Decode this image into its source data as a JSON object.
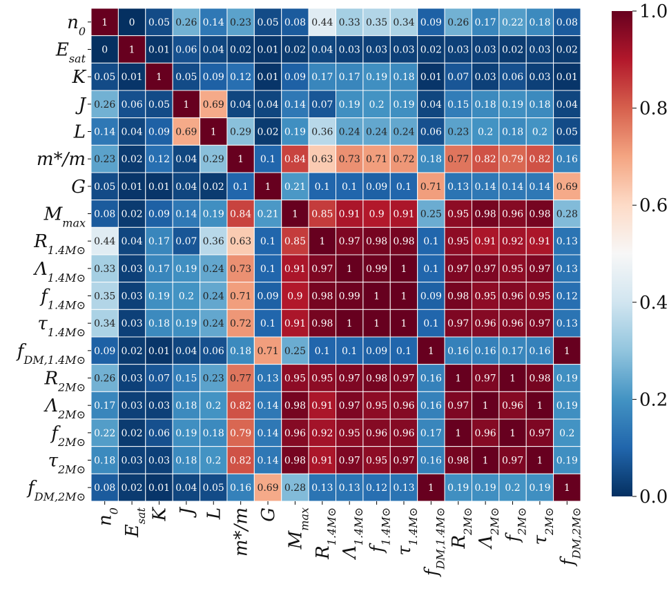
{
  "chart_data": {
    "type": "heatmap",
    "title": "",
    "xlabel": "",
    "ylabel": "",
    "labels": [
      "n0",
      "Esat",
      "K",
      "J",
      "L",
      "m*/m",
      "G",
      "Mmax",
      "R1.4M⊙",
      "Λ1.4M⊙",
      "f1.4M⊙",
      "τ1.4M⊙",
      "fDM,1.4M⊙",
      "R2M⊙",
      "Λ2M⊙",
      "f2M⊙",
      "τ2M⊙",
      "fDM,2M⊙"
    ],
    "matrix": [
      [
        1,
        0,
        0.05,
        0.26,
        0.14,
        0.23,
        0.05,
        0.08,
        0.44,
        0.33,
        0.35,
        0.34,
        0.09,
        0.26,
        0.17,
        0.22,
        0.18,
        0.08
      ],
      [
        0,
        1,
        0.01,
        0.06,
        0.04,
        0.02,
        0.01,
        0.02,
        0.04,
        0.03,
        0.03,
        0.03,
        0.02,
        0.03,
        0.03,
        0.02,
        0.03,
        0.02
      ],
      [
        0.05,
        0.01,
        1,
        0.05,
        0.09,
        0.12,
        0.01,
        0.09,
        0.17,
        0.17,
        0.19,
        0.18,
        0.01,
        0.07,
        0.03,
        0.06,
        0.03,
        0.01
      ],
      [
        0.26,
        0.06,
        0.05,
        1,
        0.69,
        0.04,
        0.04,
        0.14,
        0.07,
        0.19,
        0.2,
        0.19,
        0.04,
        0.15,
        0.18,
        0.19,
        0.18,
        0.04
      ],
      [
        0.14,
        0.04,
        0.09,
        0.69,
        1,
        0.29,
        0.02,
        0.19,
        0.36,
        0.24,
        0.24,
        0.24,
        0.06,
        0.23,
        0.2,
        0.18,
        0.2,
        0.05
      ],
      [
        0.23,
        0.02,
        0.12,
        0.04,
        0.29,
        1,
        0.1,
        0.84,
        0.63,
        0.73,
        0.71,
        0.72,
        0.18,
        0.77,
        0.82,
        0.79,
        0.82,
        0.16
      ],
      [
        0.05,
        0.01,
        0.01,
        0.04,
        0.02,
        0.1,
        1,
        0.21,
        0.1,
        0.1,
        0.09,
        0.1,
        0.71,
        0.13,
        0.14,
        0.14,
        0.14,
        0.69
      ],
      [
        0.08,
        0.02,
        0.09,
        0.14,
        0.19,
        0.84,
        0.21,
        1,
        0.85,
        0.91,
        0.9,
        0.91,
        0.25,
        0.95,
        0.98,
        0.96,
        0.98,
        0.28
      ],
      [
        0.44,
        0.04,
        0.17,
        0.07,
        0.36,
        0.63,
        0.1,
        0.85,
        1,
        0.97,
        0.98,
        0.98,
        0.1,
        0.95,
        0.91,
        0.92,
        0.91,
        0.13
      ],
      [
        0.33,
        0.03,
        0.17,
        0.19,
        0.24,
        0.73,
        0.1,
        0.91,
        0.97,
        1,
        0.99,
        1,
        0.1,
        0.97,
        0.97,
        0.95,
        0.97,
        0.13
      ],
      [
        0.35,
        0.03,
        0.19,
        0.2,
        0.24,
        0.71,
        0.09,
        0.9,
        0.98,
        0.99,
        1,
        1,
        0.09,
        0.98,
        0.95,
        0.96,
        0.95,
        0.12
      ],
      [
        0.34,
        0.03,
        0.18,
        0.19,
        0.24,
        0.72,
        0.1,
        0.91,
        0.98,
        1,
        1,
        1,
        0.1,
        0.97,
        0.96,
        0.96,
        0.97,
        0.13
      ],
      [
        0.09,
        0.02,
        0.01,
        0.04,
        0.06,
        0.18,
        0.71,
        0.25,
        0.1,
        0.1,
        0.09,
        0.1,
        1,
        0.16,
        0.16,
        0.17,
        0.16,
        1
      ],
      [
        0.26,
        0.03,
        0.07,
        0.15,
        0.23,
        0.77,
        0.13,
        0.95,
        0.95,
        0.97,
        0.98,
        0.97,
        0.16,
        1,
        0.97,
        1,
        0.98,
        0.19
      ],
      [
        0.17,
        0.03,
        0.03,
        0.18,
        0.2,
        0.82,
        0.14,
        0.98,
        0.91,
        0.97,
        0.95,
        0.96,
        0.16,
        0.97,
        1,
        0.96,
        1,
        0.19
      ],
      [
        0.22,
        0.02,
        0.06,
        0.19,
        0.18,
        0.79,
        0.14,
        0.96,
        0.92,
        0.95,
        0.96,
        0.96,
        0.17,
        1,
        0.96,
        1,
        0.97,
        0.2
      ],
      [
        0.18,
        0.03,
        0.03,
        0.18,
        0.2,
        0.82,
        0.14,
        0.98,
        0.91,
        0.97,
        0.95,
        0.97,
        0.16,
        0.98,
        1,
        0.97,
        1,
        0.19
      ],
      [
        0.08,
        0.02,
        0.01,
        0.04,
        0.05,
        0.16,
        0.69,
        0.28,
        0.13,
        0.13,
        0.12,
        0.13,
        1,
        0.19,
        0.19,
        0.2,
        0.19,
        1
      ]
    ],
    "colorbar": {
      "range": [
        0.0,
        1.0
      ],
      "ticks": [
        "0.0",
        "0.2",
        "0.4",
        "0.6",
        "0.8",
        "1.0"
      ],
      "colormap": "RdBu_r",
      "colors": [
        "#053061",
        "#2166ac",
        "#4393c3",
        "#92c5de",
        "#d1e5f0",
        "#f7f7f7",
        "#fddbc7",
        "#f4a582",
        "#d6604d",
        "#b2182b",
        "#67001f"
      ]
    }
  }
}
